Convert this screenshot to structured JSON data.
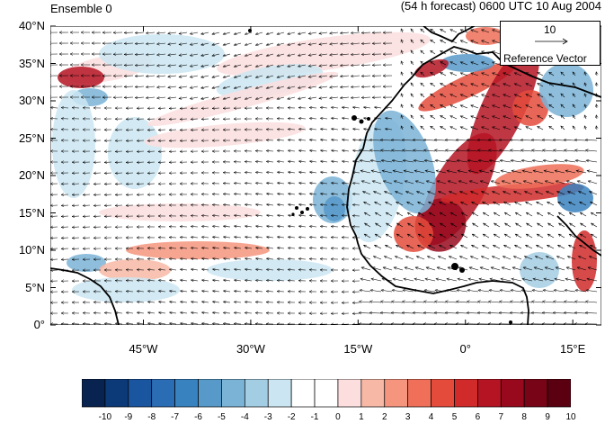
{
  "title": {
    "left": "Ensemble 0",
    "right": "(54 h forecast) 0600 UTC 10 Aug 2004"
  },
  "map": {
    "lat_range": [
      0,
      40
    ],
    "lon_range": [
      -58,
      19
    ],
    "lat_ticks": [
      "40°N",
      "35°N",
      "30°N",
      "25°N",
      "20°N",
      "15°N",
      "10°N",
      "5°N",
      "0°"
    ],
    "lon_ticks": [
      "45°W",
      "30°W",
      "15°W",
      "0°",
      "15°E"
    ],
    "missing_fill_color": "#c8c8c8"
  },
  "reference_vector": {
    "magnitude": "10",
    "label": "Reference Vector"
  },
  "colorbar": {
    "labels": [
      "-10",
      "-9",
      "-8",
      "-7",
      "-6",
      "-5",
      "-4",
      "-3",
      "-2",
      "-1",
      "0",
      "1",
      "2",
      "3",
      "4",
      "5",
      "6",
      "7",
      "8",
      "9",
      "10"
    ],
    "colors": [
      "#08234f",
      "#0c3a78",
      "#1a55a0",
      "#2a6db4",
      "#3982c0",
      "#5799c9",
      "#7ab3d6",
      "#a3cde3",
      "#cbe6f2",
      "#ffffff",
      "#ffffff",
      "#fcdede",
      "#f7b8a6",
      "#f5957e",
      "#ef6f58",
      "#e44b3b",
      "#d02a2a",
      "#b51423",
      "#98091d",
      "#780517",
      "#5a0011"
    ]
  }
}
